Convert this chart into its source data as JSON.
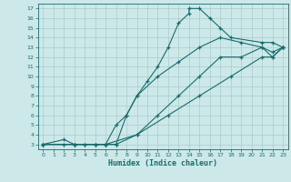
{
  "xlabel": "Humidex (Indice chaleur)",
  "bg_color": "#cce8e8",
  "line_color": "#1a6b6b",
  "grid_color": "#aacccc",
  "xlim": [
    -0.5,
    23.5
  ],
  "ylim": [
    2.5,
    17.5
  ],
  "xticks": [
    0,
    1,
    2,
    3,
    4,
    5,
    6,
    7,
    8,
    9,
    10,
    11,
    12,
    13,
    14,
    15,
    16,
    17,
    18,
    19,
    20,
    21,
    22,
    23
  ],
  "yticks": [
    3,
    4,
    5,
    6,
    7,
    8,
    9,
    10,
    11,
    12,
    13,
    14,
    15,
    16,
    17
  ],
  "line1_x": [
    0,
    2,
    3,
    4,
    5,
    6,
    7,
    8,
    9,
    10,
    11,
    12,
    13,
    14,
    14,
    15,
    16,
    17,
    18,
    21,
    22,
    23
  ],
  "line1_y": [
    3,
    3.5,
    3,
    3,
    3,
    3,
    3,
    6,
    8,
    9.5,
    11,
    13,
    15.5,
    16.5,
    17,
    17,
    16,
    15,
    14,
    13.5,
    13.5,
    13
  ],
  "line2_x": [
    0,
    2,
    3,
    4,
    5,
    6,
    7,
    8,
    9,
    11,
    13,
    15,
    17,
    19,
    21,
    22,
    23
  ],
  "line2_y": [
    3,
    3,
    3,
    3,
    3,
    3,
    5,
    6,
    8,
    10,
    11.5,
    13,
    14,
    13.5,
    13,
    12.5,
    13
  ],
  "line3_x": [
    0,
    3,
    5,
    6,
    7,
    9,
    11,
    13,
    15,
    17,
    19,
    21,
    22,
    23
  ],
  "line3_y": [
    3,
    3,
    3,
    3,
    3,
    4,
    6,
    8,
    10,
    12,
    12,
    13,
    12,
    13
  ],
  "line4_x": [
    0,
    3,
    6,
    9,
    12,
    15,
    18,
    21,
    22,
    23
  ],
  "line4_y": [
    3,
    3,
    3,
    4,
    6,
    8,
    10,
    12,
    12,
    13
  ],
  "marker": "+"
}
